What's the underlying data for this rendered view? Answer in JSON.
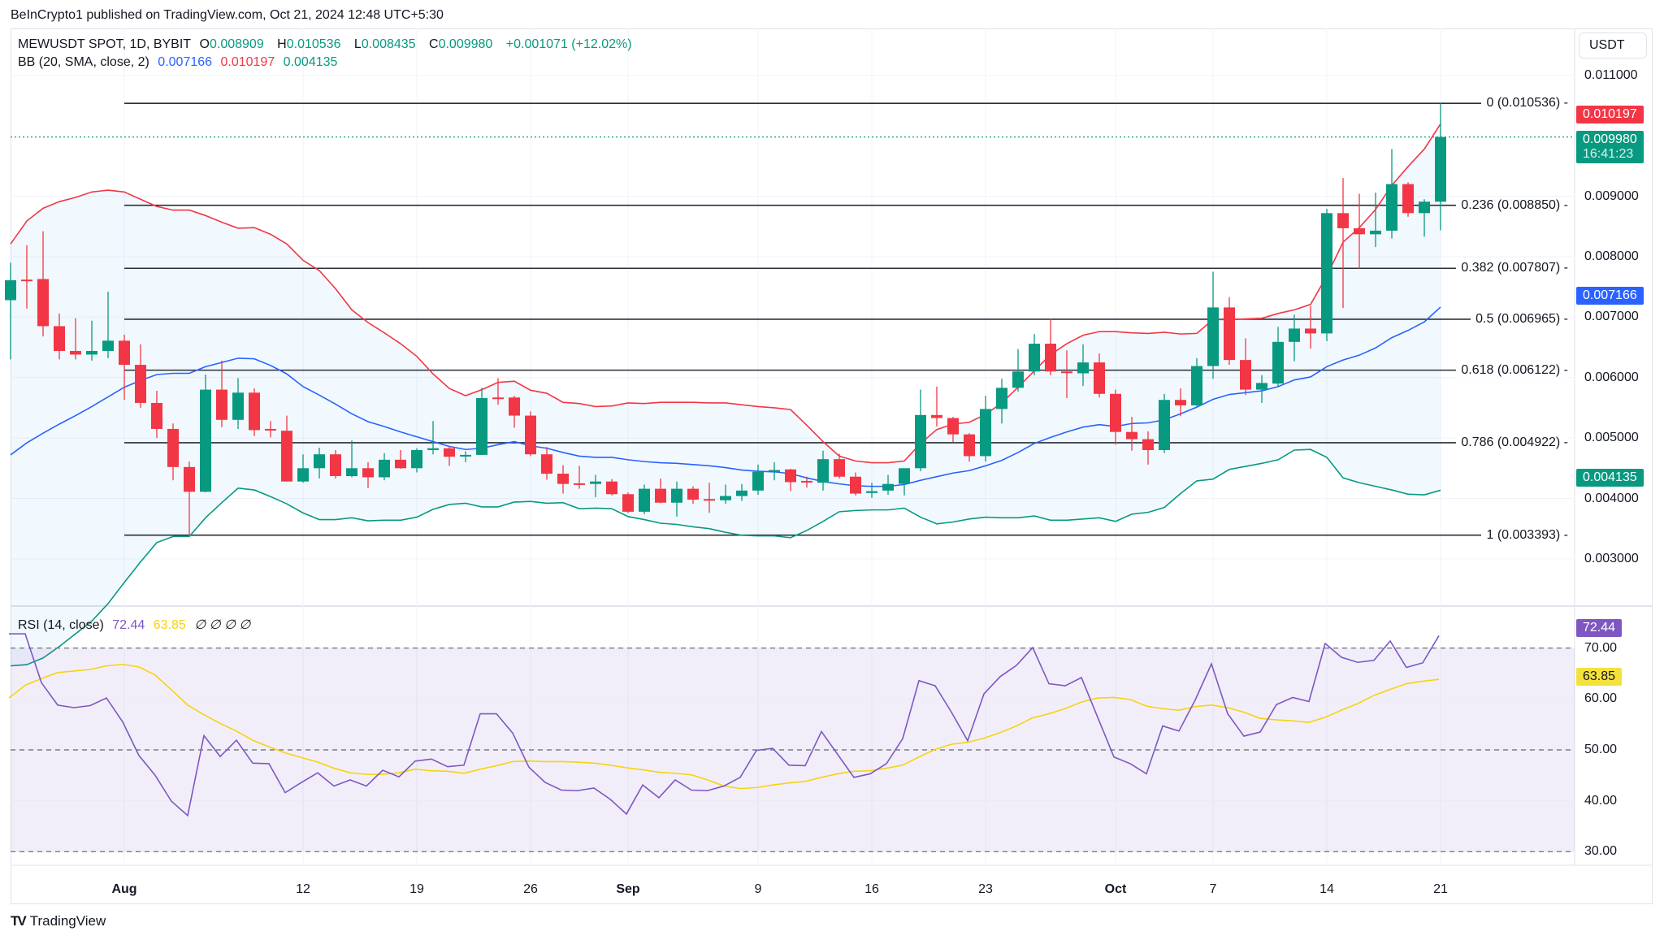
{
  "publish_line": "BeInCrypto1 published on TradingView.com, Oct 21, 2024 12:48 UTC+5:30",
  "legend": {
    "symbol": "MEWUSDT SPOT, 1D, BYBIT",
    "o_label": "O",
    "o": "0.008909",
    "h_label": "H",
    "h": "0.010536",
    "l_label": "L",
    "l": "0.008435",
    "c_label": "C",
    "c": "0.009980",
    "change": "+0.001071 (+12.02%)",
    "bb_label": "BB (20, SMA, close, 2)",
    "bb_basis": "0.007166",
    "bb_upper": "0.010197",
    "bb_lower": "0.004135",
    "rsi_label": "RSI (14, close)",
    "rsi_value": "72.44",
    "rsi_ma": "63.85",
    "rsi_extra": "∅ ∅ ∅ ∅"
  },
  "currency": "USDT",
  "badges": {
    "upper": "0.010197",
    "close": "0.009980",
    "countdown": "16:41:23",
    "basis": "0.007166",
    "lower": "0.004135",
    "rsi": "72.44",
    "rsi_ma": "63.85"
  },
  "colors": {
    "up": "#089981",
    "down": "#f23645",
    "basis": "#2962ff",
    "rsi": "#7e57c2",
    "rsi_ma": "#f5d40f"
  },
  "brand": "TradingView",
  "chart_data": [
    {
      "type": "candlestick",
      "title": "MEWUSDT SPOT, 1D, BYBIT",
      "ylim": [
        0.0024,
        0.01175
      ],
      "y_ticks": [
        "0.011000",
        "0.009000",
        "0.008000",
        "0.007000",
        "0.006000",
        "0.005000",
        "0.004000",
        "0.003000"
      ],
      "y_tick_values": [
        0.011,
        0.009,
        0.008,
        0.007,
        0.006,
        0.005,
        0.004,
        0.003
      ],
      "x_ticks": [
        {
          "label": "Aug",
          "index": 7,
          "bold": true
        },
        {
          "label": "12",
          "index": 18
        },
        {
          "label": "19",
          "index": 25
        },
        {
          "label": "26",
          "index": 32
        },
        {
          "label": "Sep",
          "index": 38,
          "bold": true
        },
        {
          "label": "9",
          "index": 46
        },
        {
          "label": "16",
          "index": 53
        },
        {
          "label": "23",
          "index": 60
        },
        {
          "label": "Oct",
          "index": 68,
          "bold": true
        },
        {
          "label": "7",
          "index": 74
        },
        {
          "label": "14",
          "index": 81
        },
        {
          "label": "21",
          "index": 88
        }
      ],
      "ohlc": [
        [
          0.00728,
          0.0079,
          0.0063,
          0.00761
        ],
        [
          0.00762,
          0.00819,
          0.00714,
          0.0076
        ],
        [
          0.00763,
          0.00842,
          0.00668,
          0.00685
        ],
        [
          0.00685,
          0.00706,
          0.0063,
          0.00644
        ],
        [
          0.00644,
          0.00698,
          0.0063,
          0.00638
        ],
        [
          0.00638,
          0.00694,
          0.00628,
          0.00644
        ],
        [
          0.00644,
          0.00742,
          0.00632,
          0.00661
        ],
        [
          0.00661,
          0.00671,
          0.00563,
          0.00621
        ],
        [
          0.00621,
          0.00655,
          0.0055,
          0.00558
        ],
        [
          0.00558,
          0.00578,
          0.005,
          0.00515
        ],
        [
          0.00515,
          0.00524,
          0.0043,
          0.00452
        ],
        [
          0.00452,
          0.00461,
          0.00337,
          0.00411
        ],
        [
          0.00411,
          0.00605,
          0.0041,
          0.0058
        ],
        [
          0.0058,
          0.00628,
          0.00518,
          0.0053
        ],
        [
          0.0053,
          0.00599,
          0.00515,
          0.00575
        ],
        [
          0.00575,
          0.00582,
          0.00503,
          0.00513
        ],
        [
          0.00515,
          0.00528,
          0.00501,
          0.00514
        ],
        [
          0.00512,
          0.00537,
          0.00428,
          0.00428
        ],
        [
          0.00428,
          0.00473,
          0.00426,
          0.0045
        ],
        [
          0.0045,
          0.00484,
          0.00433,
          0.00473
        ],
        [
          0.00473,
          0.0048,
          0.00433,
          0.00437
        ],
        [
          0.00437,
          0.00496,
          0.00435,
          0.0045
        ],
        [
          0.0045,
          0.0046,
          0.00417,
          0.00435
        ],
        [
          0.00435,
          0.00475,
          0.0043,
          0.00464
        ],
        [
          0.00464,
          0.0048,
          0.00449,
          0.0045
        ],
        [
          0.0045,
          0.00483,
          0.00443,
          0.0048
        ],
        [
          0.0048,
          0.00528,
          0.00473,
          0.00483
        ],
        [
          0.00483,
          0.00487,
          0.00454,
          0.00469
        ],
        [
          0.0047,
          0.00478,
          0.0046,
          0.00472
        ],
        [
          0.00472,
          0.00583,
          0.00472,
          0.00566
        ],
        [
          0.00567,
          0.00599,
          0.00555,
          0.00566
        ],
        [
          0.00567,
          0.0057,
          0.00517,
          0.00537
        ],
        [
          0.00537,
          0.00544,
          0.0047,
          0.00473
        ],
        [
          0.00473,
          0.00485,
          0.00431,
          0.00441
        ],
        [
          0.00441,
          0.00455,
          0.00408,
          0.00424
        ],
        [
          0.00425,
          0.00454,
          0.00416,
          0.00424
        ],
        [
          0.00424,
          0.00439,
          0.00402,
          0.00428
        ],
        [
          0.00428,
          0.00432,
          0.00405,
          0.00407
        ],
        [
          0.00407,
          0.0041,
          0.00376,
          0.00378
        ],
        [
          0.00378,
          0.00423,
          0.00374,
          0.00416
        ],
        [
          0.00416,
          0.00433,
          0.00392,
          0.00393
        ],
        [
          0.00393,
          0.00428,
          0.0037,
          0.00416
        ],
        [
          0.00416,
          0.0042,
          0.00391,
          0.00398
        ],
        [
          0.00399,
          0.00426,
          0.00376,
          0.00398
        ],
        [
          0.00397,
          0.00423,
          0.00391,
          0.00404
        ],
        [
          0.00404,
          0.00424,
          0.00396,
          0.00413
        ],
        [
          0.00413,
          0.00456,
          0.00406,
          0.00444
        ],
        [
          0.00444,
          0.0046,
          0.0043,
          0.00447
        ],
        [
          0.00448,
          0.00449,
          0.00412,
          0.00427
        ],
        [
          0.00429,
          0.00436,
          0.00418,
          0.00428
        ],
        [
          0.00426,
          0.00479,
          0.00413,
          0.00465
        ],
        [
          0.00465,
          0.00474,
          0.00433,
          0.00436
        ],
        [
          0.00436,
          0.00443,
          0.00405,
          0.00408
        ],
        [
          0.00409,
          0.00426,
          0.00401,
          0.00412
        ],
        [
          0.00413,
          0.00439,
          0.00406,
          0.00424
        ],
        [
          0.00424,
          0.0045,
          0.00405,
          0.0045
        ],
        [
          0.0045,
          0.0058,
          0.00445,
          0.00538
        ],
        [
          0.00538,
          0.00585,
          0.00519,
          0.00533
        ],
        [
          0.00533,
          0.00535,
          0.00493,
          0.00506
        ],
        [
          0.00506,
          0.00508,
          0.00461,
          0.0047
        ],
        [
          0.0047,
          0.0057,
          0.00461,
          0.00548
        ],
        [
          0.00548,
          0.00598,
          0.00524,
          0.00583
        ],
        [
          0.00583,
          0.00647,
          0.00577,
          0.0061
        ],
        [
          0.0061,
          0.00672,
          0.00604,
          0.00656
        ],
        [
          0.00656,
          0.00697,
          0.00604,
          0.0061
        ],
        [
          0.0061,
          0.00645,
          0.00566,
          0.00608
        ],
        [
          0.00607,
          0.00655,
          0.00586,
          0.00625
        ],
        [
          0.00625,
          0.0064,
          0.00567,
          0.00573
        ],
        [
          0.00573,
          0.0058,
          0.00489,
          0.0051
        ],
        [
          0.0051,
          0.00535,
          0.00479,
          0.00498
        ],
        [
          0.00498,
          0.00511,
          0.00456,
          0.0048
        ],
        [
          0.0048,
          0.00573,
          0.00475,
          0.00563
        ],
        [
          0.00563,
          0.00582,
          0.00536,
          0.00554
        ],
        [
          0.00554,
          0.00632,
          0.00552,
          0.00619
        ],
        [
          0.00619,
          0.00775,
          0.00598,
          0.00716
        ],
        [
          0.00716,
          0.00733,
          0.00621,
          0.00629
        ],
        [
          0.00629,
          0.00665,
          0.00571,
          0.0058
        ],
        [
          0.0058,
          0.00604,
          0.00558,
          0.00591
        ],
        [
          0.0059,
          0.00684,
          0.00584,
          0.00659
        ],
        [
          0.00659,
          0.00704,
          0.00627,
          0.00681
        ],
        [
          0.00681,
          0.00718,
          0.00648,
          0.00673
        ],
        [
          0.00673,
          0.00879,
          0.0066,
          0.00872
        ],
        [
          0.00872,
          0.0093,
          0.00715,
          0.00847
        ],
        [
          0.00847,
          0.00904,
          0.0078,
          0.00837
        ],
        [
          0.00837,
          0.00906,
          0.00816,
          0.00843
        ],
        [
          0.00843,
          0.00978,
          0.0083,
          0.0092
        ],
        [
          0.0092,
          0.00923,
          0.00866,
          0.00872
        ],
        [
          0.00872,
          0.00895,
          0.00833,
          0.00891
        ],
        [
          0.008909,
          0.010536,
          0.008435,
          0.00998
        ]
      ],
      "bb_upper": [
        0.00821,
        0.00859,
        0.0088,
        0.00891,
        0.00898,
        0.00907,
        0.0091,
        0.00907,
        0.00895,
        0.00883,
        0.00877,
        0.00877,
        0.00868,
        0.00857,
        0.00847,
        0.00848,
        0.00837,
        0.00821,
        0.00794,
        0.00777,
        0.00747,
        0.00712,
        0.00691,
        0.00674,
        0.00656,
        0.00635,
        0.00606,
        0.00582,
        0.0057,
        0.0058,
        0.00592,
        0.00594,
        0.00579,
        0.00574,
        0.00559,
        0.00557,
        0.00552,
        0.00553,
        0.00558,
        0.00557,
        0.00559,
        0.00559,
        0.00559,
        0.00558,
        0.00558,
        0.00555,
        0.00552,
        0.0055,
        0.00547,
        0.00521,
        0.00494,
        0.0047,
        0.00462,
        0.00459,
        0.00459,
        0.00462,
        0.00491,
        0.00514,
        0.00523,
        0.00526,
        0.00539,
        0.00558,
        0.00584,
        0.00611,
        0.00638,
        0.00656,
        0.0067,
        0.00676,
        0.00676,
        0.00674,
        0.00673,
        0.00675,
        0.00672,
        0.00673,
        0.00696,
        0.00696,
        0.00697,
        0.00698,
        0.00706,
        0.00712,
        0.00721,
        0.00768,
        0.00824,
        0.00848,
        0.00878,
        0.00918,
        0.00949,
        0.00978,
        0.010197
      ],
      "bb_basis": [
        0.00472,
        0.00492,
        0.00508,
        0.00523,
        0.00537,
        0.00552,
        0.00568,
        0.00584,
        0.00595,
        0.00605,
        0.00607,
        0.00607,
        0.00618,
        0.00625,
        0.00632,
        0.00631,
        0.0062,
        0.00606,
        0.00585,
        0.00571,
        0.00556,
        0.0054,
        0.00527,
        0.00519,
        0.0051,
        0.00502,
        0.00494,
        0.00486,
        0.00481,
        0.00483,
        0.00489,
        0.00494,
        0.00487,
        0.00483,
        0.00476,
        0.0047,
        0.00468,
        0.00468,
        0.00464,
        0.00461,
        0.00459,
        0.00458,
        0.00456,
        0.00454,
        0.00451,
        0.00447,
        0.00445,
        0.00444,
        0.00441,
        0.00434,
        0.00428,
        0.00424,
        0.00421,
        0.0042,
        0.0042,
        0.00423,
        0.0043,
        0.00436,
        0.00442,
        0.00446,
        0.00454,
        0.00463,
        0.00476,
        0.00491,
        0.00501,
        0.0051,
        0.00518,
        0.00522,
        0.00519,
        0.00524,
        0.00525,
        0.0053,
        0.0054,
        0.00551,
        0.00564,
        0.00572,
        0.00575,
        0.00578,
        0.00585,
        0.00596,
        0.00601,
        0.00618,
        0.00629,
        0.00637,
        0.00649,
        0.00666,
        0.00678,
        0.00692,
        0.007166
      ],
      "bb_lower_rule": "2 × basis − upper",
      "fib_levels": [
        {
          "label": "0 (0.010536)",
          "value": 0.010536
        },
        {
          "label": "0.236 (0.008850)",
          "value": 0.00885
        },
        {
          "label": "0.382 (0.007807)",
          "value": 0.007807
        },
        {
          "label": "0.5 (0.006965)",
          "value": 0.006965
        },
        {
          "label": "0.618 (0.006122)",
          "value": 0.006122
        },
        {
          "label": "0.786 (0.004922)",
          "value": 0.004922
        },
        {
          "label": "1 (0.003393)",
          "value": 0.003393
        }
      ],
      "fib_start_index": 7,
      "last_close": 0.00998
    },
    {
      "type": "line",
      "title": "RSI (14, close)",
      "ylim": [
        25,
        75
      ],
      "y_ticks": [
        "70.00",
        "60.00",
        "50.00",
        "40.00",
        "30.00"
      ],
      "y_tick_values": [
        70,
        60,
        50,
        40,
        30
      ],
      "bands": [
        70,
        50,
        30
      ],
      "series": [
        {
          "name": "RSI",
          "values": [
            72.8,
            72.8,
            63.2,
            58.8,
            58.3,
            58.7,
            60.2,
            55.5,
            48.9,
            45.0,
            39.9,
            37.1,
            52.8,
            48.7,
            51.9,
            47.4,
            47.3,
            41.6,
            43.6,
            45.5,
            42.9,
            44.1,
            42.9,
            46.0,
            44.7,
            47.8,
            48.2,
            46.7,
            47.0,
            57.1,
            57.1,
            53.3,
            46.6,
            43.6,
            42.1,
            42.0,
            42.5,
            40.3,
            37.4,
            43.1,
            40.6,
            44.1,
            42.1,
            42.0,
            42.9,
            44.6,
            49.9,
            50.3,
            47.0,
            46.9,
            53.6,
            49.1,
            44.6,
            45.3,
            47.3,
            52.2,
            63.6,
            62.6,
            57.4,
            51.8,
            61.0,
            64.4,
            66.6,
            70.1,
            63.0,
            62.6,
            64.2,
            56.4,
            48.6,
            47.3,
            45.3,
            54.7,
            53.7,
            59.8,
            66.9,
            57.1,
            52.7,
            53.5,
            58.9,
            60.3,
            59.5,
            70.9,
            68.2,
            67.2,
            67.6,
            71.4,
            66.2,
            67.1,
            72.44
          ]
        },
        {
          "name": "RSI-based MA",
          "values": [
            60.2,
            62.7,
            64.0,
            65.2,
            65.5,
            65.8,
            66.5,
            66.8,
            66.3,
            64.7,
            61.8,
            58.8,
            56.9,
            55.2,
            53.7,
            51.9,
            50.6,
            49.4,
            48.5,
            47.6,
            46.4,
            45.5,
            45.2,
            45.2,
            45.5,
            46.2,
            45.9,
            45.8,
            45.4,
            46.2,
            46.9,
            47.7,
            47.8,
            47.7,
            47.7,
            47.6,
            47.4,
            47.0,
            46.5,
            46.1,
            45.6,
            45.4,
            45.1,
            44.1,
            42.9,
            42.4,
            42.6,
            43.1,
            43.5,
            43.8,
            44.6,
            45.3,
            45.8,
            45.9,
            46.4,
            47.0,
            48.6,
            50.1,
            51.1,
            51.5,
            52.3,
            53.4,
            54.7,
            56.3,
            57.1,
            58.1,
            59.4,
            60.2,
            60.3,
            59.9,
            58.6,
            58.1,
            57.8,
            58.5,
            58.8,
            58.3,
            57.4,
            56.2,
            55.9,
            55.7,
            55.4,
            56.4,
            57.8,
            59.1,
            60.7,
            61.9,
            63.0,
            63.5,
            63.85
          ]
        }
      ]
    }
  ]
}
